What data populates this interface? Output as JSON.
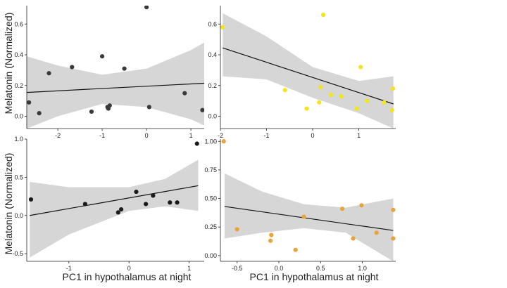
{
  "labels": {
    "ylabel": "Melatonin (Normalized)",
    "xlabel": "PC1 in hypothalamus at night"
  },
  "chart_data": [
    {
      "type": "scatter",
      "panel": "top-left",
      "color": "#3a3a3a",
      "xlim": [
        -2.7,
        1.3
      ],
      "ylim": [
        -0.08,
        0.72
      ],
      "xticks": [
        -2,
        -1,
        0,
        1
      ],
      "xtick_labels": [
        "-2",
        "-1",
        "0",
        "1"
      ],
      "yticks": [
        0,
        0.2,
        0.4,
        0.6
      ],
      "ytick_labels": [
        "0.0",
        "0.2",
        "0.4",
        "0.6"
      ],
      "points": [
        {
          "x": -2.65,
          "y": 0.09
        },
        {
          "x": -2.42,
          "y": 0.02
        },
        {
          "x": -2.2,
          "y": 0.28
        },
        {
          "x": -1.68,
          "y": 0.32
        },
        {
          "x": -1.24,
          "y": 0.03
        },
        {
          "x": -1.0,
          "y": 0.39
        },
        {
          "x": -0.88,
          "y": 0.06
        },
        {
          "x": -0.86,
          "y": 0.05
        },
        {
          "x": -0.83,
          "y": 0.07
        },
        {
          "x": -0.5,
          "y": 0.31
        },
        {
          "x": 0.0,
          "y": 0.71
        },
        {
          "x": 0.06,
          "y": 0.06
        },
        {
          "x": 0.86,
          "y": 0.15
        },
        {
          "x": 1.26,
          "y": 0.04
        }
      ],
      "fit": {
        "x0": -2.7,
        "y0": 0.155,
        "x1": 1.3,
        "y1": 0.215
      },
      "band": {
        "x": [
          -2.7,
          -2.0,
          -1.0,
          0.0,
          1.0,
          1.3
        ],
        "lower": [
          -0.08,
          0.0,
          0.08,
          0.06,
          -0.02,
          -0.06
        ],
        "upper": [
          0.39,
          0.33,
          0.27,
          0.31,
          0.43,
          0.48
        ]
      }
    },
    {
      "type": "scatter",
      "panel": "top-right",
      "color": "#f2e51e",
      "xlim": [
        -2.0,
        1.8
      ],
      "ylim": [
        -0.08,
        0.72
      ],
      "xticks": [
        -2,
        -1,
        0,
        1
      ],
      "xtick_labels": [
        "-2",
        "-1",
        "0",
        "1"
      ],
      "yticks": [
        0,
        0.2,
        0.4,
        0.6
      ],
      "ytick_labels": [
        "0.0",
        "0.2",
        "0.4",
        "0.6"
      ],
      "points": [
        {
          "x": -1.95,
          "y": 0.58
        },
        {
          "x": -0.6,
          "y": 0.17
        },
        {
          "x": -0.13,
          "y": 0.05
        },
        {
          "x": 0.14,
          "y": 0.09
        },
        {
          "x": 0.17,
          "y": 0.19
        },
        {
          "x": 0.23,
          "y": 0.66
        },
        {
          "x": 0.4,
          "y": 0.14
        },
        {
          "x": 0.62,
          "y": 0.13
        },
        {
          "x": 0.96,
          "y": 0.05
        },
        {
          "x": 1.04,
          "y": 0.32
        },
        {
          "x": 1.18,
          "y": 0.1
        },
        {
          "x": 1.55,
          "y": 0.09
        },
        {
          "x": 1.72,
          "y": 0.04
        },
        {
          "x": 1.74,
          "y": 0.18
        }
      ],
      "fit": {
        "x0": -1.95,
        "y0": 0.445,
        "x1": 1.75,
        "y1": 0.08
      },
      "band": {
        "x": [
          -1.95,
          -1.0,
          0.0,
          1.0,
          1.75
        ],
        "lower": [
          0.26,
          0.24,
          0.12,
          0.02,
          -0.08
        ],
        "upper": [
          0.67,
          0.52,
          0.32,
          0.23,
          0.26
        ]
      }
    },
    {
      "type": "scatter",
      "panel": "bottom-left",
      "color": "#1a1a1a",
      "xlim": [
        -1.7,
        1.25
      ],
      "ylim": [
        -0.6,
        1.0
      ],
      "xticks": [
        -1,
        0,
        1
      ],
      "xtick_labels": [
        "-1",
        "0",
        "1"
      ],
      "yticks": [
        -0.5,
        0,
        0.5,
        1.0
      ],
      "ytick_labels": [
        "-0.5",
        "0.0",
        "0.5",
        "1.0"
      ],
      "points": [
        {
          "x": -1.63,
          "y": 0.21
        },
        {
          "x": -0.73,
          "y": 0.15
        },
        {
          "x": -0.18,
          "y": 0.04
        },
        {
          "x": -0.13,
          "y": 0.08
        },
        {
          "x": 0.12,
          "y": 0.31
        },
        {
          "x": 0.28,
          "y": 0.15
        },
        {
          "x": 0.4,
          "y": 0.26
        },
        {
          "x": 0.68,
          "y": 0.17
        },
        {
          "x": 0.8,
          "y": 0.17
        },
        {
          "x": 1.13,
          "y": 0.94
        }
      ],
      "fit": {
        "x0": -1.65,
        "y0": 0.0,
        "x1": 1.15,
        "y1": 0.39
      },
      "band": {
        "x": [
          -1.65,
          -1.0,
          0.0,
          0.6,
          1.15
        ],
        "lower": [
          -0.55,
          -0.25,
          0.06,
          0.12,
          0.06
        ],
        "upper": [
          0.44,
          0.37,
          0.37,
          0.48,
          0.73
        ]
      }
    },
    {
      "type": "scatter",
      "panel": "bottom-right",
      "color": "#e8a33a",
      "xlim": [
        -0.7,
        1.4
      ],
      "ylim": [
        -0.05,
        1.02
      ],
      "xticks": [
        -0.5,
        0,
        0.5,
        1.0
      ],
      "xtick_labels": [
        "-0.5",
        "0.0",
        "0.5",
        "1.0"
      ],
      "yticks": [
        0,
        0.25,
        0.5,
        0.75,
        1.0
      ],
      "ytick_labels": [
        "0.00",
        "0.25",
        "0.50",
        "0.75",
        "1.00"
      ],
      "points": [
        {
          "x": -0.66,
          "y": 1.0
        },
        {
          "x": -0.5,
          "y": 0.23
        },
        {
          "x": -0.09,
          "y": 0.18
        },
        {
          "x": -0.1,
          "y": 0.13
        },
        {
          "x": 0.2,
          "y": 0.05
        },
        {
          "x": 0.3,
          "y": 0.34
        },
        {
          "x": 0.76,
          "y": 0.41
        },
        {
          "x": 0.89,
          "y": 0.15
        },
        {
          "x": 0.99,
          "y": 0.44
        },
        {
          "x": 1.17,
          "y": 0.2
        },
        {
          "x": 1.37,
          "y": 0.4
        },
        {
          "x": 1.37,
          "y": 0.15
        }
      ],
      "fit": {
        "x0": -0.65,
        "y0": 0.43,
        "x1": 1.37,
        "y1": 0.22
      },
      "band": {
        "x": [
          -0.65,
          -0.2,
          0.3,
          0.8,
          1.37
        ],
        "lower": [
          0.15,
          0.2,
          0.24,
          0.2,
          -0.05
        ],
        "upper": [
          0.72,
          0.56,
          0.45,
          0.42,
          0.5
        ]
      }
    }
  ]
}
